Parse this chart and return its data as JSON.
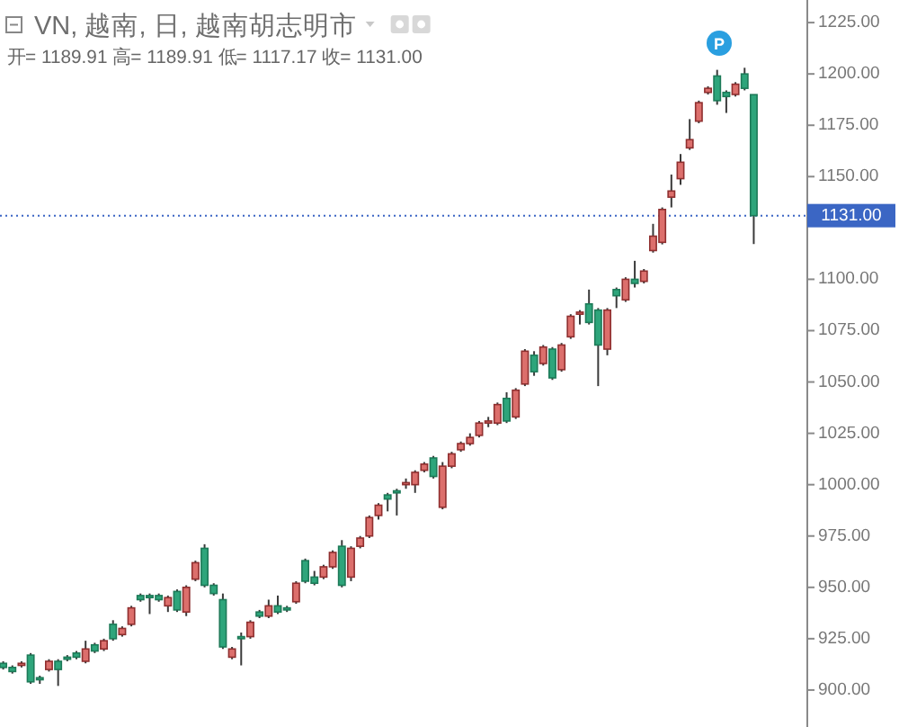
{
  "chart_data": {
    "type": "candlestick",
    "title": "VN, 越南, 日, 越南胡志明市",
    "subtitle": "开= 1189.91 高= 1189.91 低= 1117.17 收= 1131.00",
    "categories": [
      null,
      null,
      null,
      null,
      null,
      null,
      null,
      null,
      null,
      null,
      null,
      null,
      null,
      null,
      null,
      null,
      null,
      null,
      null,
      null,
      null,
      null,
      null,
      null,
      null,
      null,
      null,
      null,
      null,
      null,
      null,
      null,
      null,
      null,
      null,
      null,
      null,
      null,
      null,
      null,
      null,
      null,
      null,
      null,
      null,
      null,
      null,
      null,
      null,
      null,
      null,
      null,
      null,
      null,
      null,
      null,
      null,
      null,
      null,
      null,
      null,
      null,
      null,
      null,
      null,
      null,
      null,
      null,
      null,
      null,
      null,
      null,
      null,
      null,
      null,
      null,
      null,
      null,
      null,
      null,
      null,
      null,
      null
    ],
    "ohlc": [
      [
        913,
        914,
        910,
        911
      ],
      [
        911,
        912,
        908,
        909
      ],
      [
        912,
        914,
        911,
        913
      ],
      [
        917,
        918,
        903,
        904
      ],
      [
        906,
        907,
        903,
        905
      ],
      [
        910,
        915,
        909,
        914
      ],
      [
        914,
        915,
        902,
        910
      ],
      [
        916,
        917,
        914,
        915
      ],
      [
        918,
        919,
        915,
        916
      ],
      [
        914,
        924,
        913,
        920
      ],
      [
        922,
        923,
        918,
        919
      ],
      [
        920,
        925,
        919,
        924
      ],
      [
        932,
        934,
        924,
        925
      ],
      [
        927,
        931,
        926,
        930
      ],
      [
        932,
        941,
        931,
        940
      ],
      [
        946,
        947,
        943,
        944
      ],
      [
        946,
        947,
        937,
        945
      ],
      [
        946,
        947,
        943,
        944
      ],
      [
        941,
        946,
        938,
        945
      ],
      [
        948,
        949,
        938,
        939
      ],
      [
        938,
        951,
        936,
        950
      ],
      [
        954,
        963,
        953,
        962
      ],
      [
        969,
        971,
        950,
        951
      ],
      [
        951,
        952,
        946,
        947
      ],
      [
        944,
        947,
        920,
        921
      ],
      [
        916,
        921,
        915,
        920
      ],
      [
        926,
        928,
        912,
        925
      ],
      [
        926,
        934,
        925,
        933
      ],
      [
        938,
        939,
        935,
        936
      ],
      [
        936,
        944,
        935,
        941
      ],
      [
        941,
        946,
        937,
        938
      ],
      [
        940,
        941,
        938,
        939
      ],
      [
        943,
        953,
        942,
        952
      ],
      [
        963,
        964,
        952,
        953
      ],
      [
        955,
        958,
        951,
        952
      ],
      [
        955,
        961,
        954,
        960
      ],
      [
        960,
        968,
        959,
        967
      ],
      [
        970,
        973,
        950,
        951
      ],
      [
        955,
        970,
        953,
        969
      ],
      [
        970,
        975,
        969,
        974
      ],
      [
        975,
        985,
        974,
        984
      ],
      [
        985,
        991,
        983,
        990
      ],
      [
        995,
        996,
        987,
        993
      ],
      [
        997,
        998,
        985,
        996
      ],
      [
        1000,
        1003,
        998,
        1001
      ],
      [
        1000,
        1007,
        996,
        1006
      ],
      [
        1007,
        1011,
        1006,
        1010
      ],
      [
        1013,
        1014,
        1003,
        1004
      ],
      [
        989,
        1011,
        988,
        1009
      ],
      [
        1009,
        1016,
        1008,
        1015
      ],
      [
        1017,
        1021,
        1016,
        1020
      ],
      [
        1020,
        1025,
        1019,
        1023
      ],
      [
        1024,
        1031,
        1023,
        1030
      ],
      [
        1030,
        1033,
        1028,
        1031
      ],
      [
        1030,
        1040,
        1029,
        1039
      ],
      [
        1042,
        1045,
        1030,
        1031
      ],
      [
        1033,
        1047,
        1032,
        1046
      ],
      [
        1049,
        1066,
        1048,
        1065
      ],
      [
        1063,
        1065,
        1053,
        1055
      ],
      [
        1059,
        1068,
        1058,
        1067
      ],
      [
        1066,
        1067,
        1051,
        1052
      ],
      [
        1056,
        1069,
        1055,
        1068
      ],
      [
        1072,
        1083,
        1071,
        1082
      ],
      [
        1083,
        1085,
        1078,
        1084
      ],
      [
        1088,
        1095,
        1078,
        1079
      ],
      [
        1085,
        1086,
        1048,
        1068
      ],
      [
        1066,
        1086,
        1063,
        1085
      ],
      [
        1095,
        1096,
        1086,
        1092
      ],
      [
        1090,
        1101,
        1089,
        1100
      ],
      [
        1100,
        1109,
        1096,
        1098
      ],
      [
        1099,
        1105,
        1098,
        1104
      ],
      [
        1114,
        1127,
        1113,
        1121
      ],
      [
        1118,
        1135,
        1117,
        1134
      ],
      [
        1140,
        1151,
        1135,
        1143
      ],
      [
        1149,
        1161,
        1146,
        1157
      ],
      [
        1164,
        1178,
        1163,
        1168
      ],
      [
        1177,
        1187,
        1176,
        1186
      ],
      [
        1191,
        1194,
        1190,
        1193
      ],
      [
        1199,
        1202,
        1185,
        1187
      ],
      [
        1191,
        1192,
        1181,
        1189
      ],
      [
        1190,
        1196,
        1189,
        1195
      ],
      [
        1200,
        1203,
        1192,
        1193
      ],
      [
        1189.91,
        1189.91,
        1117.17,
        1131.0
      ]
    ],
    "ylim": [
      882,
      1236
    ],
    "yticks": [
      {
        "value": 900,
        "label": "900.00"
      },
      {
        "value": 925,
        "label": "925.00"
      },
      {
        "value": 950,
        "label": "950.00"
      },
      {
        "value": 975,
        "label": "975.00"
      },
      {
        "value": 1000,
        "label": "1000.00"
      },
      {
        "value": 1025,
        "label": "1025.00"
      },
      {
        "value": 1050,
        "label": "1050.00"
      },
      {
        "value": 1075,
        "label": "1075.00"
      },
      {
        "value": 1100,
        "label": "1100.00"
      },
      {
        "value": 1150,
        "label": "1150.00"
      },
      {
        "value": 1175,
        "label": "1175.00"
      },
      {
        "value": 1200,
        "label": "1200.00"
      },
      {
        "value": 1225,
        "label": "1225.00"
      }
    ],
    "ref_lines": [
      {
        "axis": "y",
        "value": 1131.0,
        "label": "1131.00",
        "color": "#3b66c4",
        "line_style": "dotted"
      }
    ],
    "annotations": [
      "P"
    ]
  }
}
